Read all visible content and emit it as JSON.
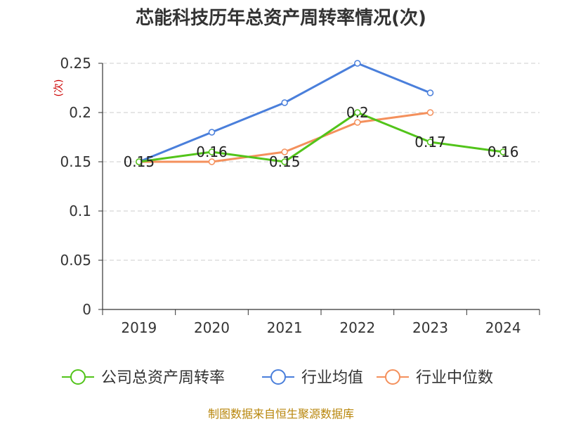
{
  "chart_data": {
    "type": "line",
    "title": "芯能科技历年总资产周转率情况(次)",
    "ylabel": "(次)",
    "xlabel": "",
    "categories": [
      "2019",
      "2020",
      "2021",
      "2022",
      "2023",
      "2024"
    ],
    "ylim": [
      0,
      0.25
    ],
    "yticks": [
      0,
      0.05,
      0.1,
      0.15,
      0.2,
      0.25
    ],
    "ytick_labels": [
      "0",
      "0.05",
      "0.1",
      "0.15",
      "0.2",
      "0.25"
    ],
    "grid": true,
    "legend_position": "bottom",
    "series": [
      {
        "name": "公司总资产周转率",
        "color": "#52c41a",
        "values": [
          0.15,
          0.16,
          0.15,
          0.2,
          0.17,
          0.16
        ],
        "labels": [
          "0.15",
          "0.16",
          "0.15",
          "0.2",
          "0.17",
          "0.16"
        ]
      },
      {
        "name": "行业均值",
        "color": "#4a7fdb",
        "values": [
          0.15,
          0.18,
          0.21,
          0.25,
          0.22,
          null
        ]
      },
      {
        "name": "行业中位数",
        "color": "#f4905c",
        "values": [
          0.15,
          0.15,
          0.16,
          0.19,
          0.2,
          null
        ]
      }
    ]
  },
  "footer": {
    "source": "制图数据来自恒生聚源数据库"
  }
}
